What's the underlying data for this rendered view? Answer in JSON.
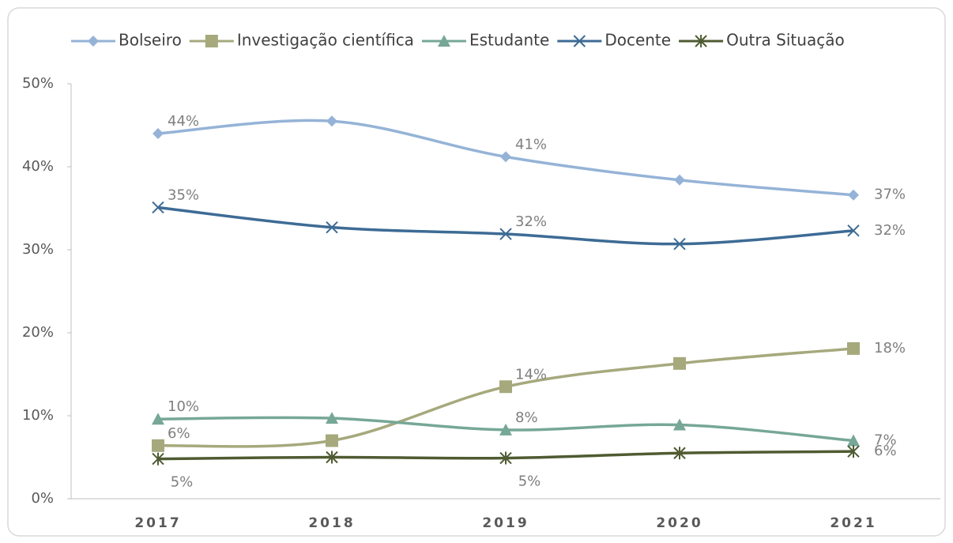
{
  "chart_data": {
    "type": "line",
    "categories": [
      "2017",
      "2018",
      "2019",
      "2020",
      "2021"
    ],
    "series": [
      {
        "name": "Bolseiro",
        "color": "#95b3d7",
        "marker": "diamond",
        "values": [
          44.0,
          45.5,
          41.2,
          38.4,
          36.6
        ],
        "value_labels": [
          "44%",
          null,
          "41%",
          null,
          "37%"
        ]
      },
      {
        "name": "Investigação científica",
        "color": "#a6a97c",
        "marker": "square",
        "values": [
          6.4,
          7.0,
          13.5,
          16.3,
          18.1
        ],
        "value_labels": [
          "6%",
          null,
          "14%",
          null,
          "18%"
        ]
      },
      {
        "name": "Estudante",
        "color": "#76a797",
        "marker": "triangle",
        "values": [
          9.6,
          9.7,
          8.3,
          8.9,
          7.0
        ],
        "value_labels": [
          "10%",
          null,
          "8%",
          null,
          "7%"
        ]
      },
      {
        "name": "Docente",
        "color": "#3d6b95",
        "marker": "x",
        "values": [
          35.1,
          32.7,
          31.9,
          30.7,
          32.3
        ],
        "value_labels": [
          "35%",
          null,
          "32%",
          null,
          "32%"
        ]
      },
      {
        "name": "Outra Situação",
        "color": "#4f5b32",
        "marker": "star",
        "values": [
          4.8,
          5.0,
          4.9,
          5.5,
          5.7
        ],
        "value_labels": [
          "5%",
          null,
          "5%",
          null,
          "6%"
        ]
      }
    ],
    "ylim": [
      0,
      50
    ],
    "yticks": [
      {
        "value": 0,
        "label": "0%"
      },
      {
        "value": 10,
        "label": "10%"
      },
      {
        "value": 20,
        "label": "20%"
      },
      {
        "value": 30,
        "label": "30%"
      },
      {
        "value": 40,
        "label": "40%"
      },
      {
        "value": 50,
        "label": "50%"
      }
    ],
    "smooth": true
  }
}
